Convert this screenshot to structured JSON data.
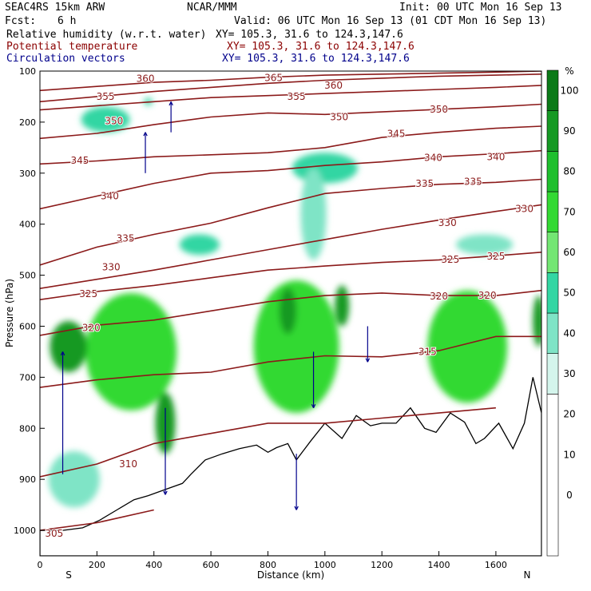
{
  "header": {
    "model": "SEAC4RS 15km ARW",
    "org": "NCAR/MMM",
    "init": "Init: 00 UTC Mon 16 Sep 13",
    "fcst_label": "Fcst:",
    "fcst_value": "6 h",
    "valid": "Valid: 06 UTC Mon 16 Sep 13 (01 CDT Mon 16 Sep 13)",
    "fields": [
      {
        "name": "Relative humidity (w.r.t. water)",
        "xy": "XY= 105.3, 31.6 to 124.3,147.6",
        "color": "#000000"
      },
      {
        "name": "Potential temperature",
        "xy": "XY= 105.3, 31.6 to 124.3,147.6",
        "color": "#8b0000"
      },
      {
        "name": "Circulation vectors",
        "xy": "XY= 105.3, 31.6 to 124.3,147.6",
        "color": "#00008b"
      }
    ]
  },
  "chart_data": {
    "type": "heatmap",
    "title": "SEAC4RS 15km ARW",
    "xlabel": "Distance (km)",
    "ylabel": "Pressure (hPa)",
    "xlim": [
      0,
      1760
    ],
    "ylim": [
      1050,
      100
    ],
    "x_ticks": [
      0,
      200,
      400,
      600,
      800,
      1000,
      1200,
      1400,
      1600
    ],
    "y_ticks": [
      100,
      200,
      300,
      400,
      500,
      600,
      700,
      800,
      900,
      1000
    ],
    "end_labels": {
      "left": "S",
      "right": "N"
    },
    "colorbar": {
      "unit": "%",
      "ticks": [
        0,
        10,
        20,
        30,
        40,
        50,
        60,
        70,
        80,
        90,
        100
      ],
      "bins": [
        {
          "lo": -10,
          "hi": 30,
          "color": "#ffffff"
        },
        {
          "lo": 30,
          "hi": 40,
          "color": "#d4f5ec"
        },
        {
          "lo": 40,
          "hi": 50,
          "color": "#7fe4c6"
        },
        {
          "lo": 50,
          "hi": 60,
          "color": "#33d6a3"
        },
        {
          "lo": 60,
          "hi": 70,
          "color": "#73e673"
        },
        {
          "lo": 70,
          "hi": 80,
          "color": "#33d933"
        },
        {
          "lo": 80,
          "hi": 90,
          "color": "#1fbf2e"
        },
        {
          "lo": 90,
          "hi": 100,
          "color": "#169924"
        },
        {
          "lo": 100,
          "hi": 110,
          "color": "#0b7a18"
        }
      ]
    },
    "terrain": [
      [
        0,
        1000
      ],
      [
        80,
        1000
      ],
      [
        150,
        995
      ],
      [
        210,
        980
      ],
      [
        270,
        960
      ],
      [
        330,
        940
      ],
      [
        380,
        932
      ],
      [
        440,
        920
      ],
      [
        500,
        908
      ],
      [
        530,
        890
      ],
      [
        580,
        862
      ],
      [
        640,
        850
      ],
      [
        700,
        840
      ],
      [
        760,
        833
      ],
      [
        800,
        847
      ],
      [
        830,
        838
      ],
      [
        870,
        830
      ],
      [
        900,
        862
      ],
      [
        950,
        825
      ],
      [
        1000,
        790
      ],
      [
        1060,
        820
      ],
      [
        1110,
        775
      ],
      [
        1160,
        795
      ],
      [
        1200,
        790
      ],
      [
        1250,
        790
      ],
      [
        1300,
        760
      ],
      [
        1350,
        800
      ],
      [
        1390,
        808
      ],
      [
        1440,
        770
      ],
      [
        1490,
        788
      ],
      [
        1530,
        830
      ],
      [
        1560,
        820
      ],
      [
        1610,
        790
      ],
      [
        1660,
        840
      ],
      [
        1700,
        790
      ],
      [
        1730,
        700
      ],
      [
        1760,
        770
      ]
    ],
    "theta_contours": [
      {
        "level": 365,
        "x": [
          0,
          200,
          400,
          600,
          800,
          1000,
          1200,
          1400,
          1600,
          1760
        ],
        "p": [
          138,
          130,
          122,
          118,
          112,
          108,
          106,
          104,
          102,
          100
        ],
        "label_at": [
          [
            820,
            113
          ]
        ]
      },
      {
        "level": 360,
        "x": [
          0,
          200,
          400,
          600,
          800,
          1000,
          1200,
          1400,
          1600,
          1760
        ],
        "p": [
          160,
          150,
          140,
          132,
          124,
          118,
          114,
          110,
          108,
          106
        ],
        "label_at": [
          [
            370,
            115
          ],
          [
            1030,
            128
          ]
        ]
      },
      {
        "level": 355,
        "x": [
          0,
          200,
          400,
          600,
          800,
          1000,
          1200,
          1400,
          1600,
          1760
        ],
        "p": [
          176,
          168,
          160,
          152,
          148,
          144,
          140,
          136,
          132,
          128
        ],
        "label_at": [
          [
            230,
            150
          ],
          [
            900,
            150
          ]
        ]
      },
      {
        "level": 350,
        "x": [
          0,
          200,
          400,
          600,
          800,
          1000,
          1200,
          1400,
          1600,
          1760
        ],
        "p": [
          232,
          222,
          205,
          190,
          182,
          185,
          180,
          175,
          170,
          165
        ],
        "label_at": [
          [
            260,
            198
          ],
          [
            1050,
            190
          ],
          [
            1400,
            175
          ]
        ]
      },
      {
        "level": 345,
        "x": [
          0,
          200,
          400,
          600,
          800,
          1000,
          1200,
          1400,
          1600,
          1760
        ],
        "p": [
          282,
          276,
          268,
          264,
          260,
          250,
          230,
          220,
          212,
          208
        ],
        "label_at": [
          [
            140,
            275
          ],
          [
            1250,
            223
          ]
        ]
      },
      {
        "level": 340,
        "x": [
          0,
          200,
          400,
          600,
          800,
          1000,
          1200,
          1400,
          1600,
          1760
        ],
        "p": [
          370,
          345,
          320,
          300,
          295,
          285,
          278,
          268,
          262,
          256
        ],
        "label_at": [
          [
            245,
            345
          ],
          [
            1380,
            270
          ],
          [
            1600,
            268
          ]
        ]
      },
      {
        "level": 335,
        "x": [
          0,
          200,
          400,
          600,
          800,
          1000,
          1200,
          1400,
          1600,
          1760
        ],
        "p": [
          480,
          445,
          420,
          398,
          368,
          340,
          330,
          322,
          318,
          312
        ],
        "label_at": [
          [
            300,
            428
          ],
          [
            1350,
            321
          ],
          [
            1520,
            317
          ]
        ]
      },
      {
        "level": 330,
        "x": [
          0,
          200,
          400,
          600,
          800,
          1000,
          1200,
          1400,
          1600,
          1760
        ],
        "p": [
          526,
          508,
          490,
          470,
          450,
          430,
          410,
          392,
          375,
          362
        ],
        "label_at": [
          [
            250,
            484
          ],
          [
            1430,
            397
          ],
          [
            1700,
            370
          ]
        ]
      },
      {
        "level": 325,
        "x": [
          0,
          200,
          400,
          600,
          800,
          1000,
          1200,
          1400,
          1600,
          1760
        ],
        "p": [
          548,
          532,
          520,
          505,
          490,
          482,
          475,
          470,
          462,
          455
        ],
        "label_at": [
          [
            170,
            537
          ],
          [
            1440,
            469
          ],
          [
            1600,
            463
          ]
        ]
      },
      {
        "level": 320,
        "x": [
          0,
          200,
          400,
          600,
          800,
          1000,
          1200,
          1400,
          1600,
          1760
        ],
        "p": [
          618,
          598,
          588,
          570,
          552,
          540,
          535,
          540,
          540,
          530
        ],
        "label_at": [
          [
            180,
            603
          ],
          [
            1400,
            541
          ],
          [
            1570,
            540
          ]
        ]
      },
      {
        "level": 315,
        "x": [
          0,
          200,
          400,
          600,
          800,
          1000,
          1200,
          1400,
          1600,
          1760
        ],
        "p": [
          720,
          705,
          695,
          690,
          670,
          658,
          660,
          648,
          620,
          620
        ],
        "label_at": [
          [
            1360,
            650
          ]
        ]
      },
      {
        "level": 310,
        "x": [
          0,
          200,
          400,
          600,
          800,
          1000,
          1200,
          1400,
          1600
        ],
        "p": [
          895,
          870,
          830,
          810,
          790,
          790,
          780,
          770,
          760
        ],
        "label_at": [
          [
            310,
            870
          ]
        ]
      },
      {
        "level": 305,
        "x": [
          0,
          200,
          400
        ],
        "p": [
          1000,
          985,
          960
        ],
        "label_at": [
          [
            50,
            1006
          ]
        ]
      }
    ],
    "rh_blobs": [
      {
        "x": 230,
        "p": 195,
        "w": 170,
        "h": 50,
        "rh": 55
      },
      {
        "x": 380,
        "p": 160,
        "w": 30,
        "h": 14,
        "rh": 55
      },
      {
        "x": 1000,
        "p": 290,
        "w": 230,
        "h": 60,
        "rh": 55
      },
      {
        "x": 960,
        "p": 380,
        "w": 90,
        "h": 180,
        "rh": 40
      },
      {
        "x": 560,
        "p": 440,
        "w": 140,
        "h": 40,
        "rh": 50
      },
      {
        "x": 1560,
        "p": 440,
        "w": 200,
        "h": 40,
        "rh": 45
      },
      {
        "x": 320,
        "p": 650,
        "w": 320,
        "h": 230,
        "rh": 75
      },
      {
        "x": 900,
        "p": 640,
        "w": 300,
        "h": 260,
        "rh": 75
      },
      {
        "x": 1500,
        "p": 640,
        "w": 280,
        "h": 220,
        "rh": 70
      },
      {
        "x": 100,
        "p": 640,
        "w": 130,
        "h": 100,
        "rh": 95
      },
      {
        "x": 440,
        "p": 790,
        "w": 70,
        "h": 120,
        "rh": 95
      },
      {
        "x": 870,
        "p": 570,
        "w": 60,
        "h": 90,
        "rh": 95
      },
      {
        "x": 1060,
        "p": 560,
        "w": 50,
        "h": 80,
        "rh": 95
      },
      {
        "x": 1750,
        "p": 590,
        "w": 40,
        "h": 100,
        "rh": 95
      },
      {
        "x": 120,
        "p": 900,
        "w": 180,
        "h": 110,
        "rh": 45
      }
    ],
    "vectors": [
      {
        "x": 80,
        "p": 890,
        "u": 0,
        "w": 240
      },
      {
        "x": 440,
        "p": 760,
        "u": 0,
        "w": -170
      },
      {
        "x": 900,
        "p": 850,
        "u": 0,
        "w": -110
      },
      {
        "x": 960,
        "p": 650,
        "u": 0,
        "w": -110
      },
      {
        "x": 370,
        "p": 300,
        "u": 0,
        "w": 80
      },
      {
        "x": 460,
        "p": 220,
        "u": 0,
        "w": 60
      },
      {
        "x": 1150,
        "p": 600,
        "u": 0,
        "w": -70
      }
    ]
  }
}
